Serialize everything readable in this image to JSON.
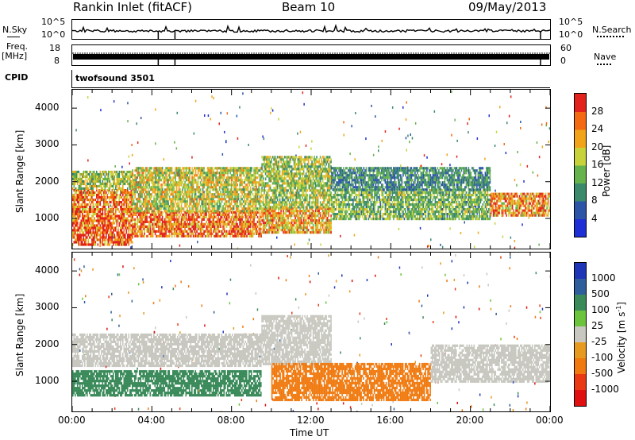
{
  "header": {
    "station": "Rankin Inlet (fitACF)",
    "beam": "Beam 10",
    "date": "09/May/2013"
  },
  "aux": {
    "nsky_label": "N.Sky",
    "nsky_top": "10^5",
    "nsky_bot": "10^0",
    "nsearch_label": "N.Search",
    "nsearch_top": "10^5",
    "nsearch_bot": "10^0",
    "freq_label": "Freq.",
    "freq_unit": "[MHz]",
    "freq_top": "18",
    "freq_bot": "8",
    "nave_label": "Nave",
    "nave_top": "60",
    "nave_bot": "0",
    "cpid_label": "CPID",
    "cpid_value": "twofsound 3501"
  },
  "chart_data": [
    {
      "type": "heatmap",
      "name": "power",
      "xlabel": "",
      "ylabel": "Slant Range [km]",
      "x_ticks": [
        "00:00",
        "04:00",
        "08:00",
        "12:00",
        "16:00",
        "20:00",
        "00:00"
      ],
      "x_range_hours": [
        0,
        24
      ],
      "y_range": [
        180,
        4500
      ],
      "y_ticks": [
        1000,
        2000,
        3000,
        4000
      ],
      "colorbar": {
        "label": "Power [dB]",
        "ticks": [
          "4",
          "8",
          "12",
          "16",
          "20",
          "24",
          "28"
        ],
        "colors": [
          "#1f2fd6",
          "#2c55a8",
          "#3c8a6c",
          "#66b24c",
          "#c8d23a",
          "#f1a41a",
          "#f36a12",
          "#e2231d"
        ]
      },
      "bands": [
        {
          "t0": 0,
          "t1": 3,
          "r0": 300,
          "r1": 1100,
          "value": 28
        },
        {
          "t0": 0,
          "t1": 3,
          "r0": 1100,
          "r1": 1800,
          "value": 24
        },
        {
          "t0": 0,
          "t1": 3,
          "r0": 1800,
          "r1": 2300,
          "value": 16
        },
        {
          "t0": 3,
          "t1": 9.5,
          "r0": 500,
          "r1": 1200,
          "value": 26
        },
        {
          "t0": 3,
          "t1": 9.5,
          "r0": 1200,
          "r1": 2400,
          "value": 18
        },
        {
          "t0": 9.5,
          "t1": 13,
          "r0": 600,
          "r1": 1300,
          "value": 22
        },
        {
          "t0": 9.5,
          "t1": 13,
          "r0": 1300,
          "r1": 2700,
          "value": 16
        },
        {
          "t0": 13,
          "t1": 21,
          "r0": 1000,
          "r1": 1800,
          "value": 14
        },
        {
          "t0": 13,
          "t1": 21,
          "r0": 1800,
          "r1": 2400,
          "value": 10
        },
        {
          "t0": 21,
          "t1": 24,
          "r0": 1100,
          "r1": 1700,
          "value": 24
        }
      ]
    },
    {
      "type": "heatmap",
      "name": "velocity",
      "xlabel": "Time UT",
      "ylabel": "Slant Range [km]",
      "x_ticks": [
        "00:00",
        "04:00",
        "08:00",
        "12:00",
        "16:00",
        "20:00",
        "00:00"
      ],
      "x_range_hours": [
        0,
        24
      ],
      "y_range": [
        180,
        4500
      ],
      "y_ticks": [
        1000,
        2000,
        3000,
        4000
      ],
      "colorbar": {
        "label": "Velocity [m s^-1]",
        "ticks": [
          "1000",
          "500",
          "100",
          "25",
          "-25",
          "-100",
          "-500",
          "-1000"
        ],
        "colors": [
          "#1f35b8",
          "#2f5e9c",
          "#3a8a5a",
          "#6cc43c",
          "#c8c8c0",
          "#e79a20",
          "#f07a10",
          "#ea3a14",
          "#e01010"
        ]
      },
      "bands": [
        {
          "t0": 0,
          "t1": 9.5,
          "r0": 600,
          "r1": 1300,
          "value": 200
        },
        {
          "t0": 0,
          "t1": 9.5,
          "r0": 1400,
          "r1": 2300,
          "value": 0
        },
        {
          "t0": 9.5,
          "t1": 13,
          "r0": 1500,
          "r1": 2800,
          "value": 0
        },
        {
          "t0": 10,
          "t1": 18,
          "r0": 500,
          "r1": 1500,
          "value": -300
        },
        {
          "t0": 18,
          "t1": 24,
          "r0": 1000,
          "r1": 2000,
          "value": 0
        }
      ]
    }
  ]
}
